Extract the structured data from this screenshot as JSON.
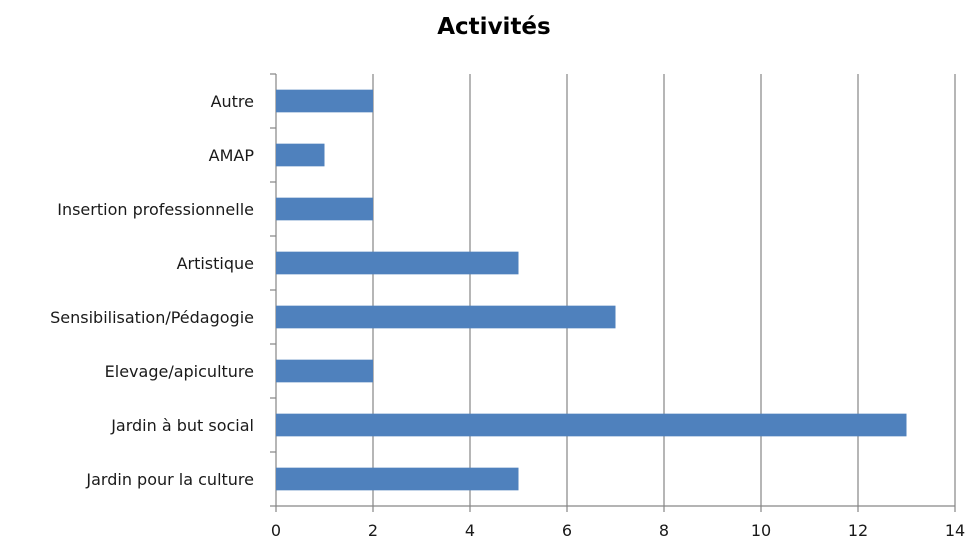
{
  "chart_data": {
    "type": "bar",
    "orientation": "horizontal",
    "title": "Activités",
    "xlabel": "",
    "ylabel": "",
    "categories": [
      "Jardin pour la culture",
      "Jardin à but social",
      "Elevage/apiculture",
      "Sensibilisation/Pédagogie",
      "Artistique",
      "Insertion professionnelle",
      "AMAP",
      "Autre"
    ],
    "values": [
      5,
      13,
      2,
      7,
      5,
      2,
      1,
      2
    ],
    "xlim": [
      0,
      14
    ],
    "x_ticks": [
      "0",
      "2",
      "4",
      "6",
      "8",
      "10",
      "12",
      "14"
    ],
    "grid": "vertical",
    "legend": "none",
    "bar_color": "#4f81bd",
    "grid_color": "#868686"
  }
}
